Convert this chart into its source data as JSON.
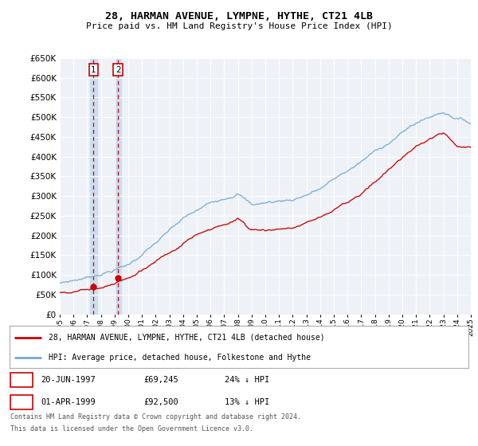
{
  "title": "28, HARMAN AVENUE, LYMPNE, HYTHE, CT21 4LB",
  "subtitle": "Price paid vs. HM Land Registry's House Price Index (HPI)",
  "ylim": [
    0,
    650000
  ],
  "ytick_values": [
    0,
    50000,
    100000,
    150000,
    200000,
    250000,
    300000,
    350000,
    400000,
    450000,
    500000,
    550000,
    600000,
    650000
  ],
  "x_start_year": 1995,
  "x_end_year": 2025,
  "sale1": {
    "date_num": 1997.47,
    "price": 69245,
    "label": "1",
    "date_str": "20-JUN-1997",
    "price_str": "£69,245",
    "hpi_str": "24% ↓ HPI"
  },
  "sale2": {
    "date_num": 1999.25,
    "price": 92500,
    "label": "2",
    "date_str": "01-APR-1999",
    "price_str": "£92,500",
    "hpi_str": "13% ↓ HPI"
  },
  "red_color": "#cc0000",
  "blue_color": "#74a9d4",
  "background_plot": "#eef2f7",
  "highlight_color": "#ccddf0",
  "grid_color": "#ffffff",
  "legend_line1": "28, HARMAN AVENUE, LYMPNE, HYTHE, CT21 4LB (detached house)",
  "legend_line2": "HPI: Average price, detached house, Folkestone and Hythe",
  "footnote1": "Contains HM Land Registry data © Crown copyright and database right 2024.",
  "footnote2": "This data is licensed under the Open Government Licence v3.0.",
  "table_rows": [
    {
      "num": "1",
      "date": "20-JUN-1997",
      "price": "£69,245",
      "hpi": "24% ↓ HPI"
    },
    {
      "num": "2",
      "date": "01-APR-1999",
      "price": "£92,500",
      "hpi": "13% ↓ HPI"
    }
  ]
}
